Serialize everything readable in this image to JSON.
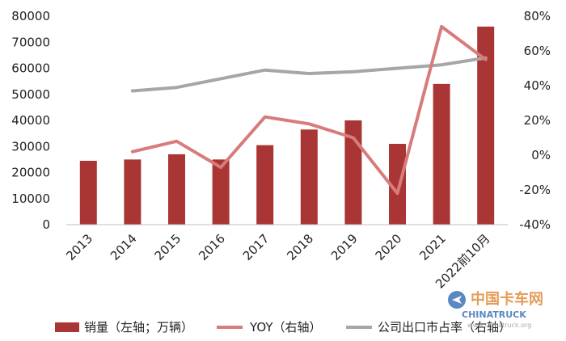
{
  "chart_data": {
    "type": "bar+line",
    "categories": [
      "2013",
      "2014",
      "2015",
      "2016",
      "2017",
      "2018",
      "2019",
      "2020",
      "2021",
      "2022前10月"
    ],
    "series": [
      {
        "name": "销量（左轴；万辆）",
        "kind": "bar",
        "axis": "left",
        "color": "#a93535",
        "values": [
          24500,
          25000,
          27000,
          25000,
          30500,
          36500,
          40000,
          31000,
          54000,
          76000
        ]
      },
      {
        "name": "YOY（右轴）",
        "kind": "line",
        "axis": "right",
        "color": "#d77b7b",
        "values": [
          null,
          0.02,
          0.08,
          -0.07,
          0.22,
          0.18,
          0.1,
          -0.22,
          0.74,
          0.55
        ]
      },
      {
        "name": "公司出口市占率（右轴）",
        "kind": "line",
        "axis": "right",
        "color": "#a6a6a6",
        "values": [
          null,
          0.37,
          0.39,
          0.44,
          0.49,
          0.47,
          0.48,
          0.5,
          0.52,
          0.56
        ]
      }
    ],
    "left_axis": {
      "min": 0,
      "max": 80000,
      "ticks": [
        "0",
        "10000",
        "20000",
        "30000",
        "40000",
        "50000",
        "60000",
        "70000",
        "80000"
      ]
    },
    "right_axis": {
      "min": -0.4,
      "max": 0.8,
      "ticks": [
        "-40%",
        "-20%",
        "0%",
        "20%",
        "40%",
        "60%",
        "80%"
      ]
    },
    "legend_position": "bottom",
    "grid": false
  },
  "watermark": {
    "cn": "中国卡车网",
    "en": "CHINATRUCK",
    "url": "www.chinatruck.org"
  }
}
